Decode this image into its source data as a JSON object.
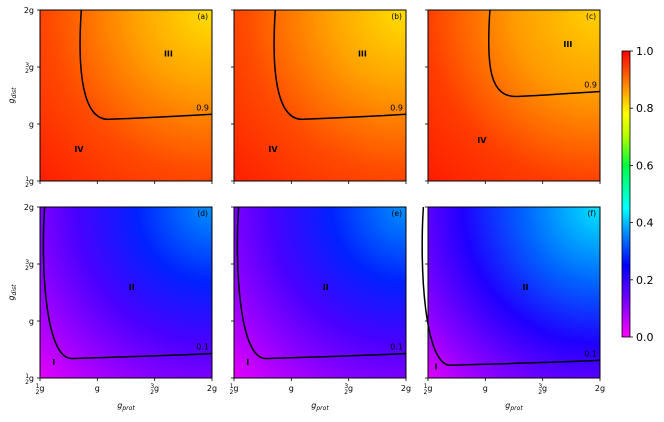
{
  "chart_data": {
    "type": "heatmap",
    "shared_axes": {
      "x_ticks": [
        "1/2 g",
        "g",
        "3/2 g",
        "2g"
      ],
      "y_ticks": [
        "1/2 g",
        "g",
        "3/2 g",
        "2g"
      ],
      "xlabel": "g_prot",
      "ylabel": "g_dist",
      "xlim": [
        0.5,
        2.0
      ],
      "ylim": [
        0.5,
        2.0
      ]
    },
    "colorbar": {
      "ticks": [
        "0.0",
        "0.2",
        "0.4",
        "0.6",
        "0.8",
        "1.0"
      ],
      "range": [
        0.0,
        1.0
      ],
      "colormap": "gist_rainbow-like (magenta → blue → cyan → green → yellow → orange → red)"
    },
    "panels": [
      {
        "id": "a",
        "label": "(a)",
        "palette": "warm",
        "contour_level": "0.9",
        "contour_corner": [
          0.92,
          1.05
        ],
        "regions": [
          {
            "text": "III",
            "x": 1.62,
            "y": 1.62
          },
          {
            "text": "IV",
            "x": 0.84,
            "y": 0.78
          }
        ]
      },
      {
        "id": "b",
        "label": "(b)",
        "palette": "warm",
        "contour_level": "0.9",
        "contour_corner": [
          0.92,
          1.05
        ],
        "regions": [
          {
            "text": "III",
            "x": 1.62,
            "y": 1.62
          },
          {
            "text": "IV",
            "x": 0.84,
            "y": 0.78
          }
        ]
      },
      {
        "id": "c",
        "label": "(c)",
        "palette": "warm",
        "contour_level": "0.9",
        "contour_corner": [
          1.1,
          1.25
        ],
        "regions": [
          {
            "text": "III",
            "x": 1.72,
            "y": 1.7
          },
          {
            "text": "IV",
            "x": 0.97,
            "y": 0.86
          }
        ]
      },
      {
        "id": "d",
        "label": "(d)",
        "palette": "cool",
        "contour_level": "0.1",
        "contour_corner": [
          0.6,
          0.68
        ],
        "regions": [
          {
            "text": "II",
            "x": 1.3,
            "y": 1.3
          },
          {
            "text": "I",
            "x": 0.62,
            "y": 0.64
          }
        ]
      },
      {
        "id": "e",
        "label": "(e)",
        "palette": "cool",
        "contour_level": "0.1",
        "contour_corner": [
          0.6,
          0.68
        ],
        "regions": [
          {
            "text": "II",
            "x": 1.3,
            "y": 1.3
          },
          {
            "text": "I",
            "x": 0.62,
            "y": 0.64
          }
        ]
      },
      {
        "id": "f",
        "label": "(f)",
        "palette": "cool",
        "contour_level": "0.1",
        "contour_corner": [
          0.52,
          0.62
        ],
        "regions": [
          {
            "text": "II",
            "x": 1.35,
            "y": 1.3
          },
          {
            "text": "I",
            "x": 0.57,
            "y": 0.6
          }
        ]
      }
    ]
  }
}
